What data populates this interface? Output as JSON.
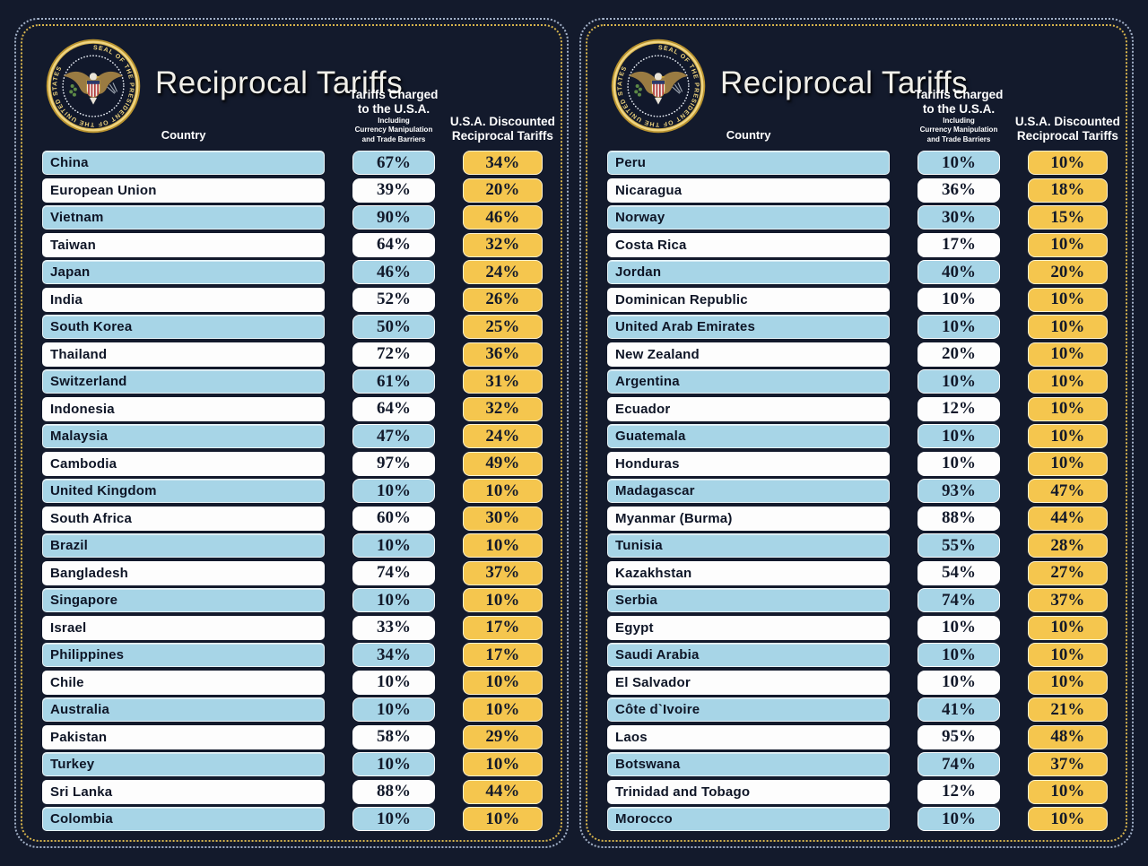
{
  "header": {
    "title": "Reciprocal Tariffs",
    "seal_text": "SEAL OF THE PRESIDENT OF THE UNITED STATES",
    "country_label": "Country",
    "charged_line1": "Tariffs Charged",
    "charged_line2": "to the U.S.A.",
    "charged_sub1": "Including",
    "charged_sub2": "Currency Manipulation",
    "charged_sub3": "and Trade Barriers",
    "discount_line1": "U.S.A. Discounted",
    "discount_line2": "Reciprocal Tariffs"
  },
  "colors": {
    "background": "#131a2c",
    "row_blue": "#a7d5e7",
    "row_white": "#fdfdfd",
    "gold": "#f5c64e",
    "ink": "#0e1526",
    "outer_dotted_border": "#becde4",
    "inner_dotted_border": "#d7b44c"
  },
  "chart_data": [
    {
      "type": "table",
      "panel": "left",
      "title": "Reciprocal Tariffs",
      "columns": [
        "Country",
        "Tariffs Charged to the U.S.A. Including Currency Manipulation and Trade Barriers",
        "U.S.A. Discounted Reciprocal Tariffs"
      ],
      "rows": [
        [
          "China",
          "67%",
          "34%"
        ],
        [
          "European Union",
          "39%",
          "20%"
        ],
        [
          "Vietnam",
          "90%",
          "46%"
        ],
        [
          "Taiwan",
          "64%",
          "32%"
        ],
        [
          "Japan",
          "46%",
          "24%"
        ],
        [
          "India",
          "52%",
          "26%"
        ],
        [
          "South Korea",
          "50%",
          "25%"
        ],
        [
          "Thailand",
          "72%",
          "36%"
        ],
        [
          "Switzerland",
          "61%",
          "31%"
        ],
        [
          "Indonesia",
          "64%",
          "32%"
        ],
        [
          "Malaysia",
          "47%",
          "24%"
        ],
        [
          "Cambodia",
          "97%",
          "49%"
        ],
        [
          "United Kingdom",
          "10%",
          "10%"
        ],
        [
          "South Africa",
          "60%",
          "30%"
        ],
        [
          "Brazil",
          "10%",
          "10%"
        ],
        [
          "Bangladesh",
          "74%",
          "37%"
        ],
        [
          "Singapore",
          "10%",
          "10%"
        ],
        [
          "Israel",
          "33%",
          "17%"
        ],
        [
          "Philippines",
          "34%",
          "17%"
        ],
        [
          "Chile",
          "10%",
          "10%"
        ],
        [
          "Australia",
          "10%",
          "10%"
        ],
        [
          "Pakistan",
          "58%",
          "29%"
        ],
        [
          "Turkey",
          "10%",
          "10%"
        ],
        [
          "Sri Lanka",
          "88%",
          "44%"
        ],
        [
          "Colombia",
          "10%",
          "10%"
        ]
      ]
    },
    {
      "type": "table",
      "panel": "right",
      "title": "Reciprocal Tariffs",
      "columns": [
        "Country",
        "Tariffs Charged to the U.S.A. Including Currency Manipulation and Trade Barriers",
        "U.S.A. Discounted Reciprocal Tariffs"
      ],
      "rows": [
        [
          "Peru",
          "10%",
          "10%"
        ],
        [
          "Nicaragua",
          "36%",
          "18%"
        ],
        [
          "Norway",
          "30%",
          "15%"
        ],
        [
          "Costa Rica",
          "17%",
          "10%"
        ],
        [
          "Jordan",
          "40%",
          "20%"
        ],
        [
          "Dominican Republic",
          "10%",
          "10%"
        ],
        [
          "United Arab Emirates",
          "10%",
          "10%"
        ],
        [
          "New Zealand",
          "20%",
          "10%"
        ],
        [
          "Argentina",
          "10%",
          "10%"
        ],
        [
          "Ecuador",
          "12%",
          "10%"
        ],
        [
          "Guatemala",
          "10%",
          "10%"
        ],
        [
          "Honduras",
          "10%",
          "10%"
        ],
        [
          "Madagascar",
          "93%",
          "47%"
        ],
        [
          "Myanmar (Burma)",
          "88%",
          "44%"
        ],
        [
          "Tunisia",
          "55%",
          "28%"
        ],
        [
          "Kazakhstan",
          "54%",
          "27%"
        ],
        [
          "Serbia",
          "74%",
          "37%"
        ],
        [
          "Egypt",
          "10%",
          "10%"
        ],
        [
          "Saudi Arabia",
          "10%",
          "10%"
        ],
        [
          "El Salvador",
          "10%",
          "10%"
        ],
        [
          "Côte d`Ivoire",
          "41%",
          "21%"
        ],
        [
          "Laos",
          "95%",
          "48%"
        ],
        [
          "Botswana",
          "74%",
          "37%"
        ],
        [
          "Trinidad and Tobago",
          "12%",
          "10%"
        ],
        [
          "Morocco",
          "10%",
          "10%"
        ]
      ]
    }
  ]
}
